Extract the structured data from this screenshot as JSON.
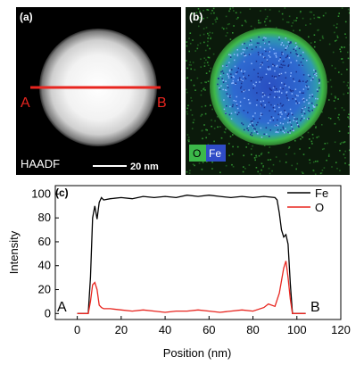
{
  "panel_a": {
    "letter": "(a)",
    "marker_start": "A",
    "marker_end": "B",
    "mode_label": "HAADF",
    "scale_label": "20 nm"
  },
  "panel_b": {
    "letter": "(b)",
    "legend": [
      {
        "label": "O",
        "color": "#3cb94a"
      },
      {
        "label": "Fe",
        "color": "#2f4cc7"
      }
    ]
  },
  "chart_data": {
    "type": "line",
    "panel_letter": "(c)",
    "xlabel": "Position (nm)",
    "ylabel": "Intensity",
    "xlim": [
      -10,
      120
    ],
    "ylim": [
      -5,
      107
    ],
    "xticks": [
      0,
      20,
      40,
      60,
      80,
      100,
      120
    ],
    "yticks": [
      0,
      20,
      40,
      60,
      80,
      100
    ],
    "grid": false,
    "legend_position": "top-right",
    "start_marker": "A",
    "end_marker": "B",
    "series": [
      {
        "name": "Fe",
        "color": "#000000",
        "x": [
          0,
          5,
          6,
          7,
          8,
          9,
          10,
          11,
          12,
          15,
          20,
          25,
          30,
          35,
          40,
          45,
          50,
          55,
          60,
          65,
          70,
          75,
          80,
          85,
          90,
          91,
          92,
          93,
          94,
          95,
          96,
          97,
          98,
          100,
          104
        ],
        "y": [
          0,
          0,
          30,
          80,
          90,
          79,
          93,
          97,
          95,
          96,
          97,
          96,
          98,
          97,
          98,
          97,
          99,
          98,
          99,
          98,
          97,
          98,
          97,
          98,
          97,
          95,
          84,
          70,
          64,
          66,
          58,
          25,
          0,
          0,
          0
        ]
      },
      {
        "name": "O",
        "color": "#e8251f",
        "x": [
          0,
          5,
          6,
          7,
          8,
          9,
          10,
          11,
          12,
          15,
          20,
          25,
          30,
          35,
          40,
          45,
          50,
          55,
          60,
          65,
          70,
          75,
          80,
          85,
          87,
          90,
          92,
          94,
          95,
          96,
          97,
          98,
          100,
          104
        ],
        "y": [
          0,
          0,
          10,
          24,
          26,
          20,
          7,
          5,
          4,
          4,
          3,
          2,
          3,
          2,
          1,
          2,
          2,
          3,
          2,
          1,
          2,
          3,
          2,
          5,
          8,
          6,
          17,
          38,
          44,
          30,
          12,
          0,
          0,
          0
        ]
      }
    ]
  }
}
